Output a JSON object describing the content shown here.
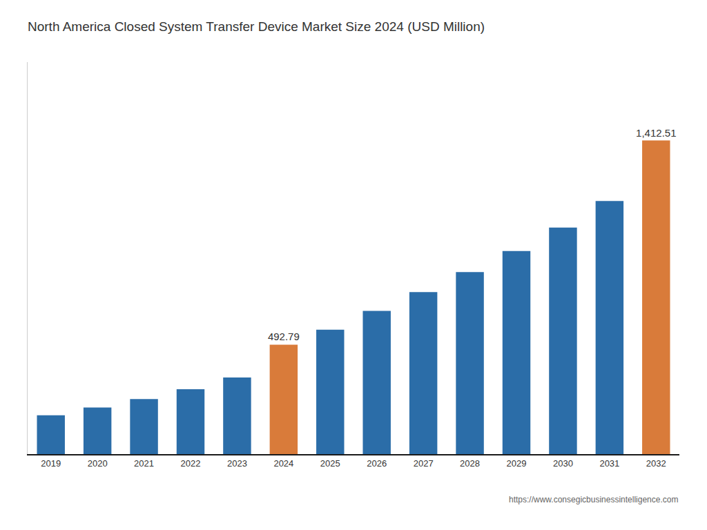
{
  "chart_data": {
    "type": "bar",
    "title": "North America Closed System Transfer Device Market Size 2024 (USD Million)",
    "categories": [
      "2019",
      "2020",
      "2021",
      "2022",
      "2023",
      "2024",
      "2025",
      "2026",
      "2027",
      "2028",
      "2029",
      "2030",
      "2031",
      "2032"
    ],
    "values": [
      175,
      210,
      248,
      292,
      345,
      492.79,
      560,
      645,
      730,
      820,
      915,
      1020,
      1140,
      1412.51
    ],
    "value_labels": [
      null,
      null,
      null,
      null,
      null,
      "492.79",
      null,
      null,
      null,
      null,
      null,
      null,
      null,
      "1,412.51"
    ],
    "data_labels": true,
    "colors": [
      "#2B6DA8",
      "#2B6DA8",
      "#2B6DA8",
      "#2B6DA8",
      "#2B6DA8",
      "#D97B3A",
      "#2B6DA8",
      "#2B6DA8",
      "#2B6DA8",
      "#2B6DA8",
      "#2B6DA8",
      "#2B6DA8",
      "#2B6DA8",
      "#D97B3A"
    ],
    "ylim": [
      0,
      1765.6375
    ],
    "tick_labels": "x",
    "grid": false,
    "annotations": [
      "https://www.consegicbusinessintelligence.com"
    ]
  }
}
